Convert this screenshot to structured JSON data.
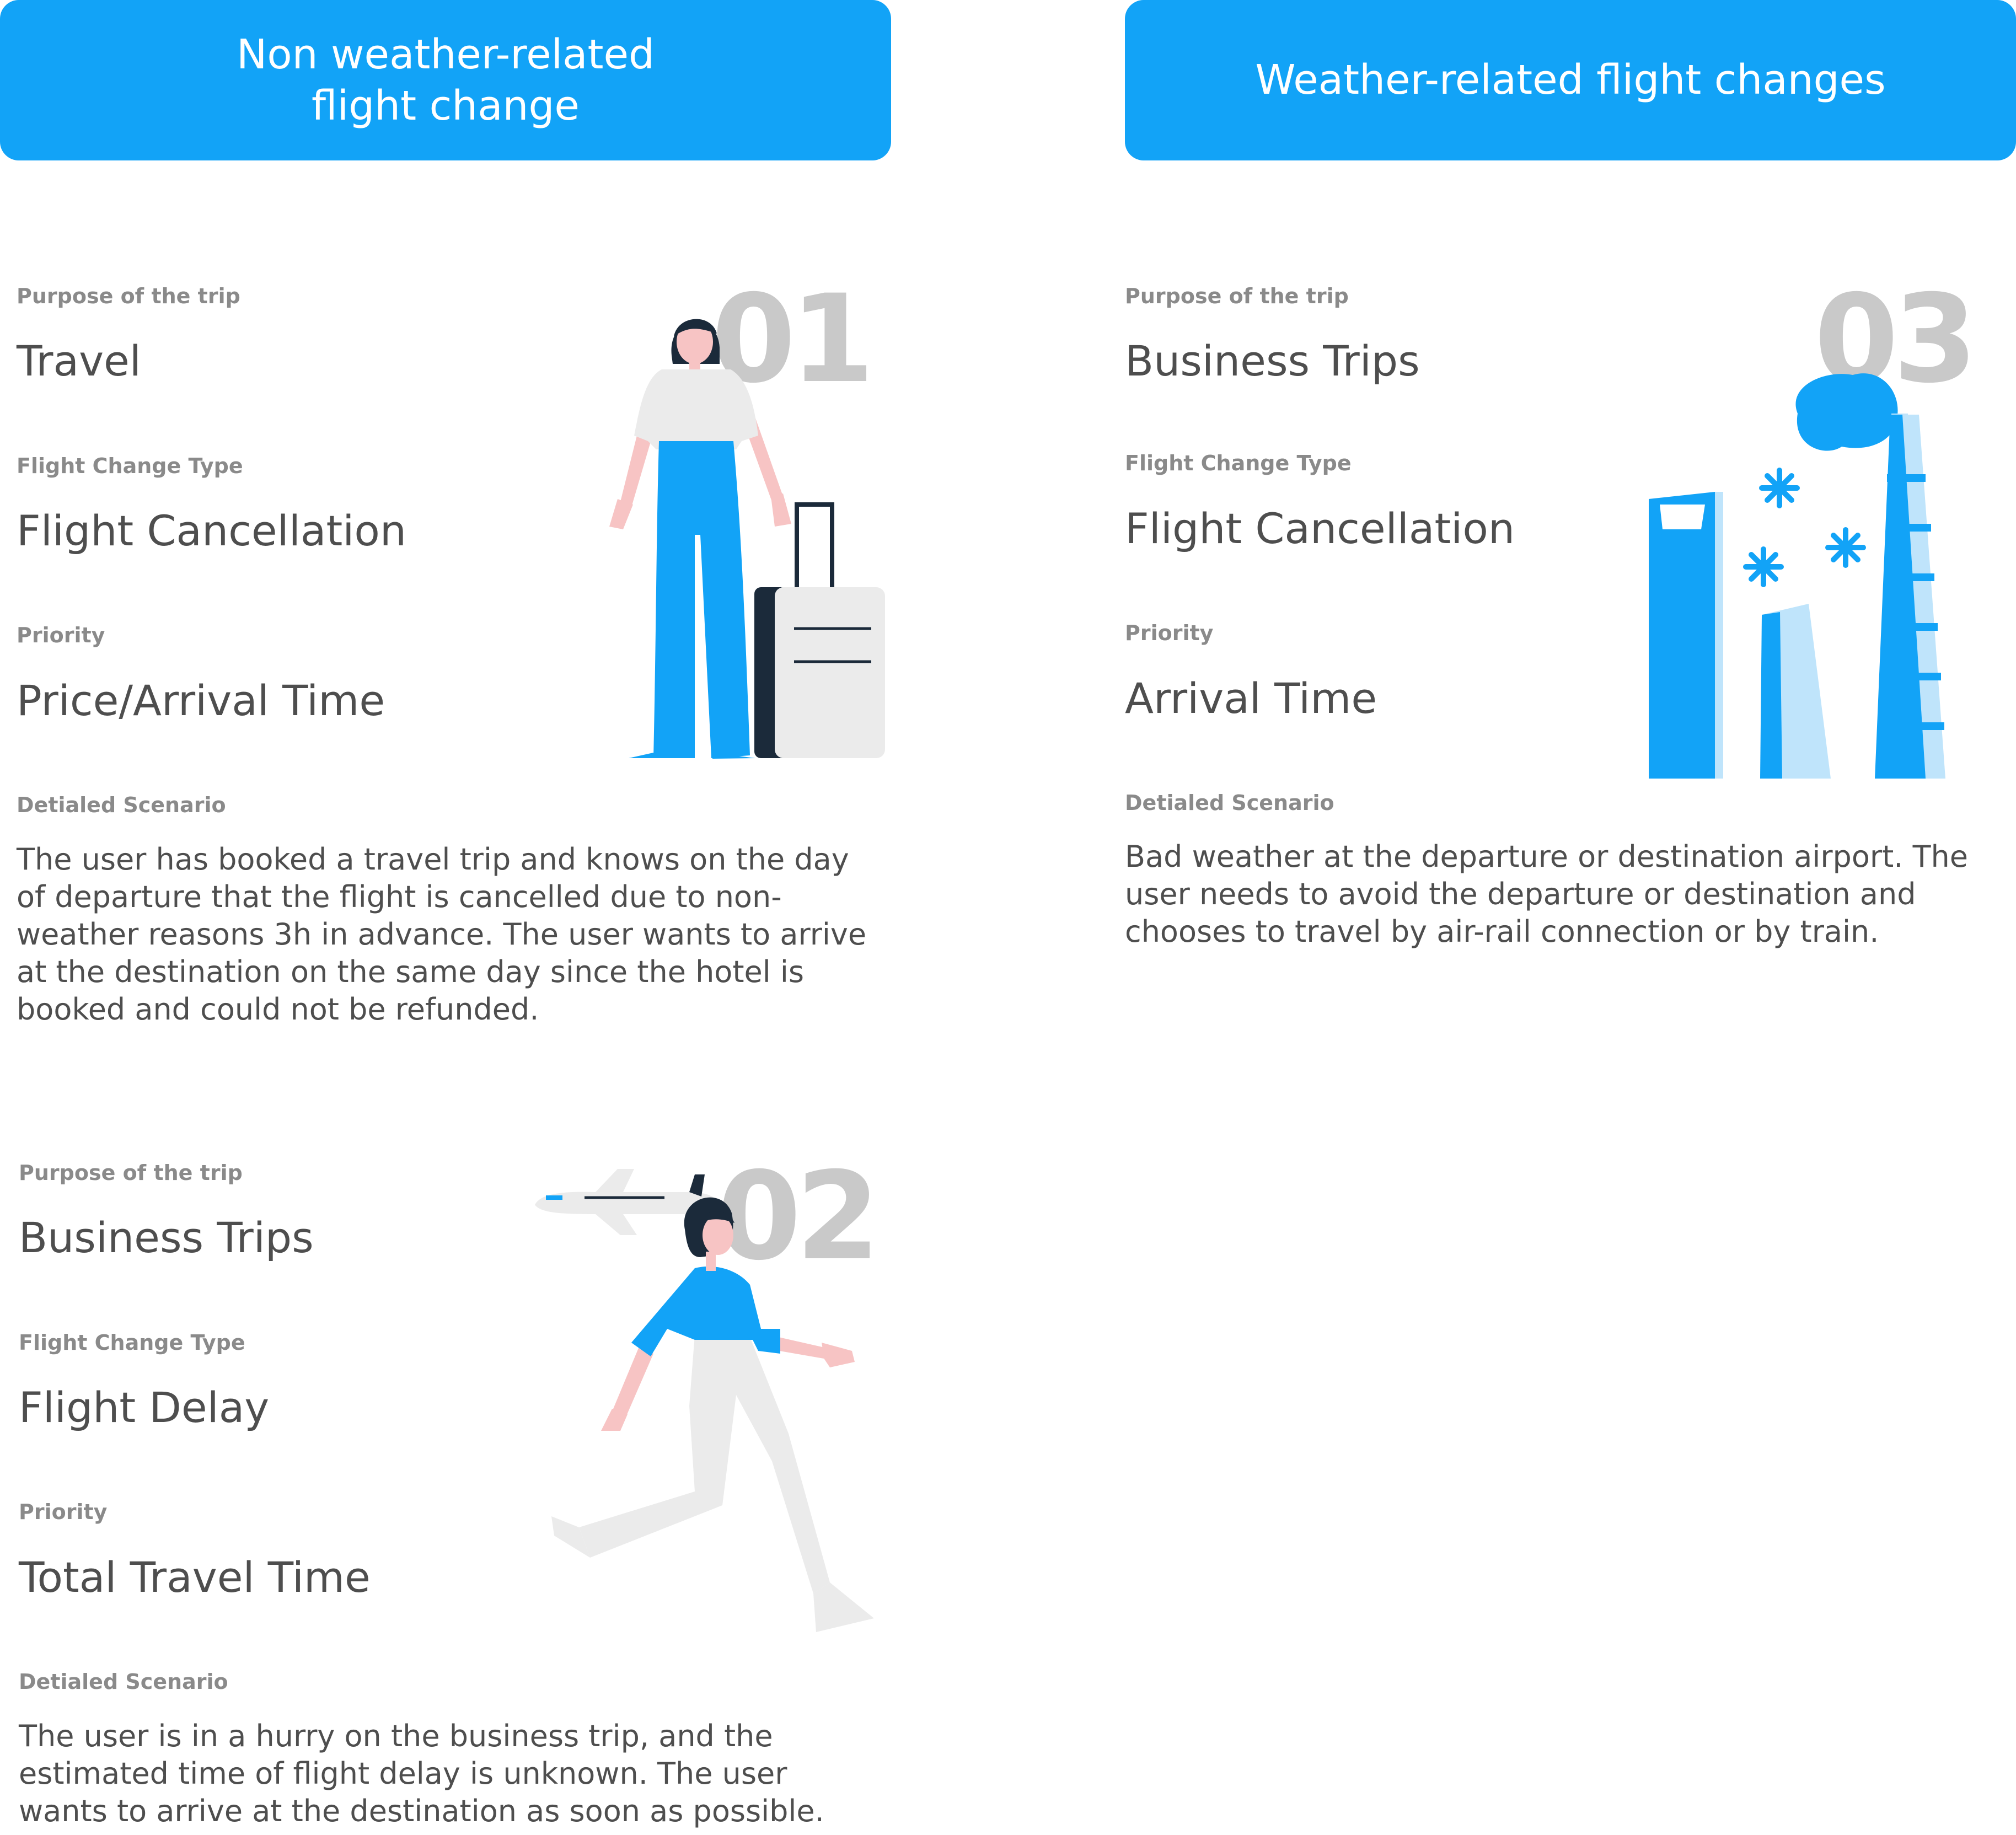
{
  "headers": {
    "left": "Non weather-related\nflight change",
    "right": "Weather-related flight changes"
  },
  "cards": [
    {
      "number": "01",
      "purpose_label": "Purpose of the trip",
      "purpose": "Travel",
      "type_label": "Flight Change Type",
      "type": "Flight Cancellation",
      "priority_label": "Priority",
      "priority": "Price/Arrival Time",
      "scenario_label": "Detialed Scenario",
      "scenario": "The user has booked a travel trip and knows on the day of departure that the flight is cancelled due to non-weather reasons 3h in advance. The user wants to arrive at the destination on the same day since the hotel is booked and could not be refunded."
    },
    {
      "number": "02",
      "purpose_label": "Purpose of the trip",
      "purpose": "Business Trips",
      "type_label": "Flight Change Type",
      "type": "Flight Delay",
      "priority_label": "Priority",
      "priority": "Total Travel Time",
      "scenario_label": "Detialed Scenario",
      "scenario": "The user is in a hurry on the business trip, and the estimated time of flight delay is unknown. The user wants to arrive at the destination as soon as possible."
    },
    {
      "number": "03",
      "purpose_label": "Purpose of the trip",
      "purpose": "Business Trips",
      "type_label": "Flight Change Type",
      "type": "Flight Cancellation",
      "priority_label": "Priority",
      "priority": "Arrival Time",
      "scenario_label": "Detialed Scenario",
      "scenario": "Bad weather at the departure or destination airport. The user needs to avoid the departure or destination and chooses to travel by air-rail connection or by train."
    }
  ],
  "colors": {
    "accent": "#12a3f7",
    "light_blue": "#bfe4fb",
    "dark_navy": "#1b2a3a",
    "skin": "#f7c4c4",
    "light_gray": "#ebebeb",
    "number_gray": "#c9c9c9"
  }
}
